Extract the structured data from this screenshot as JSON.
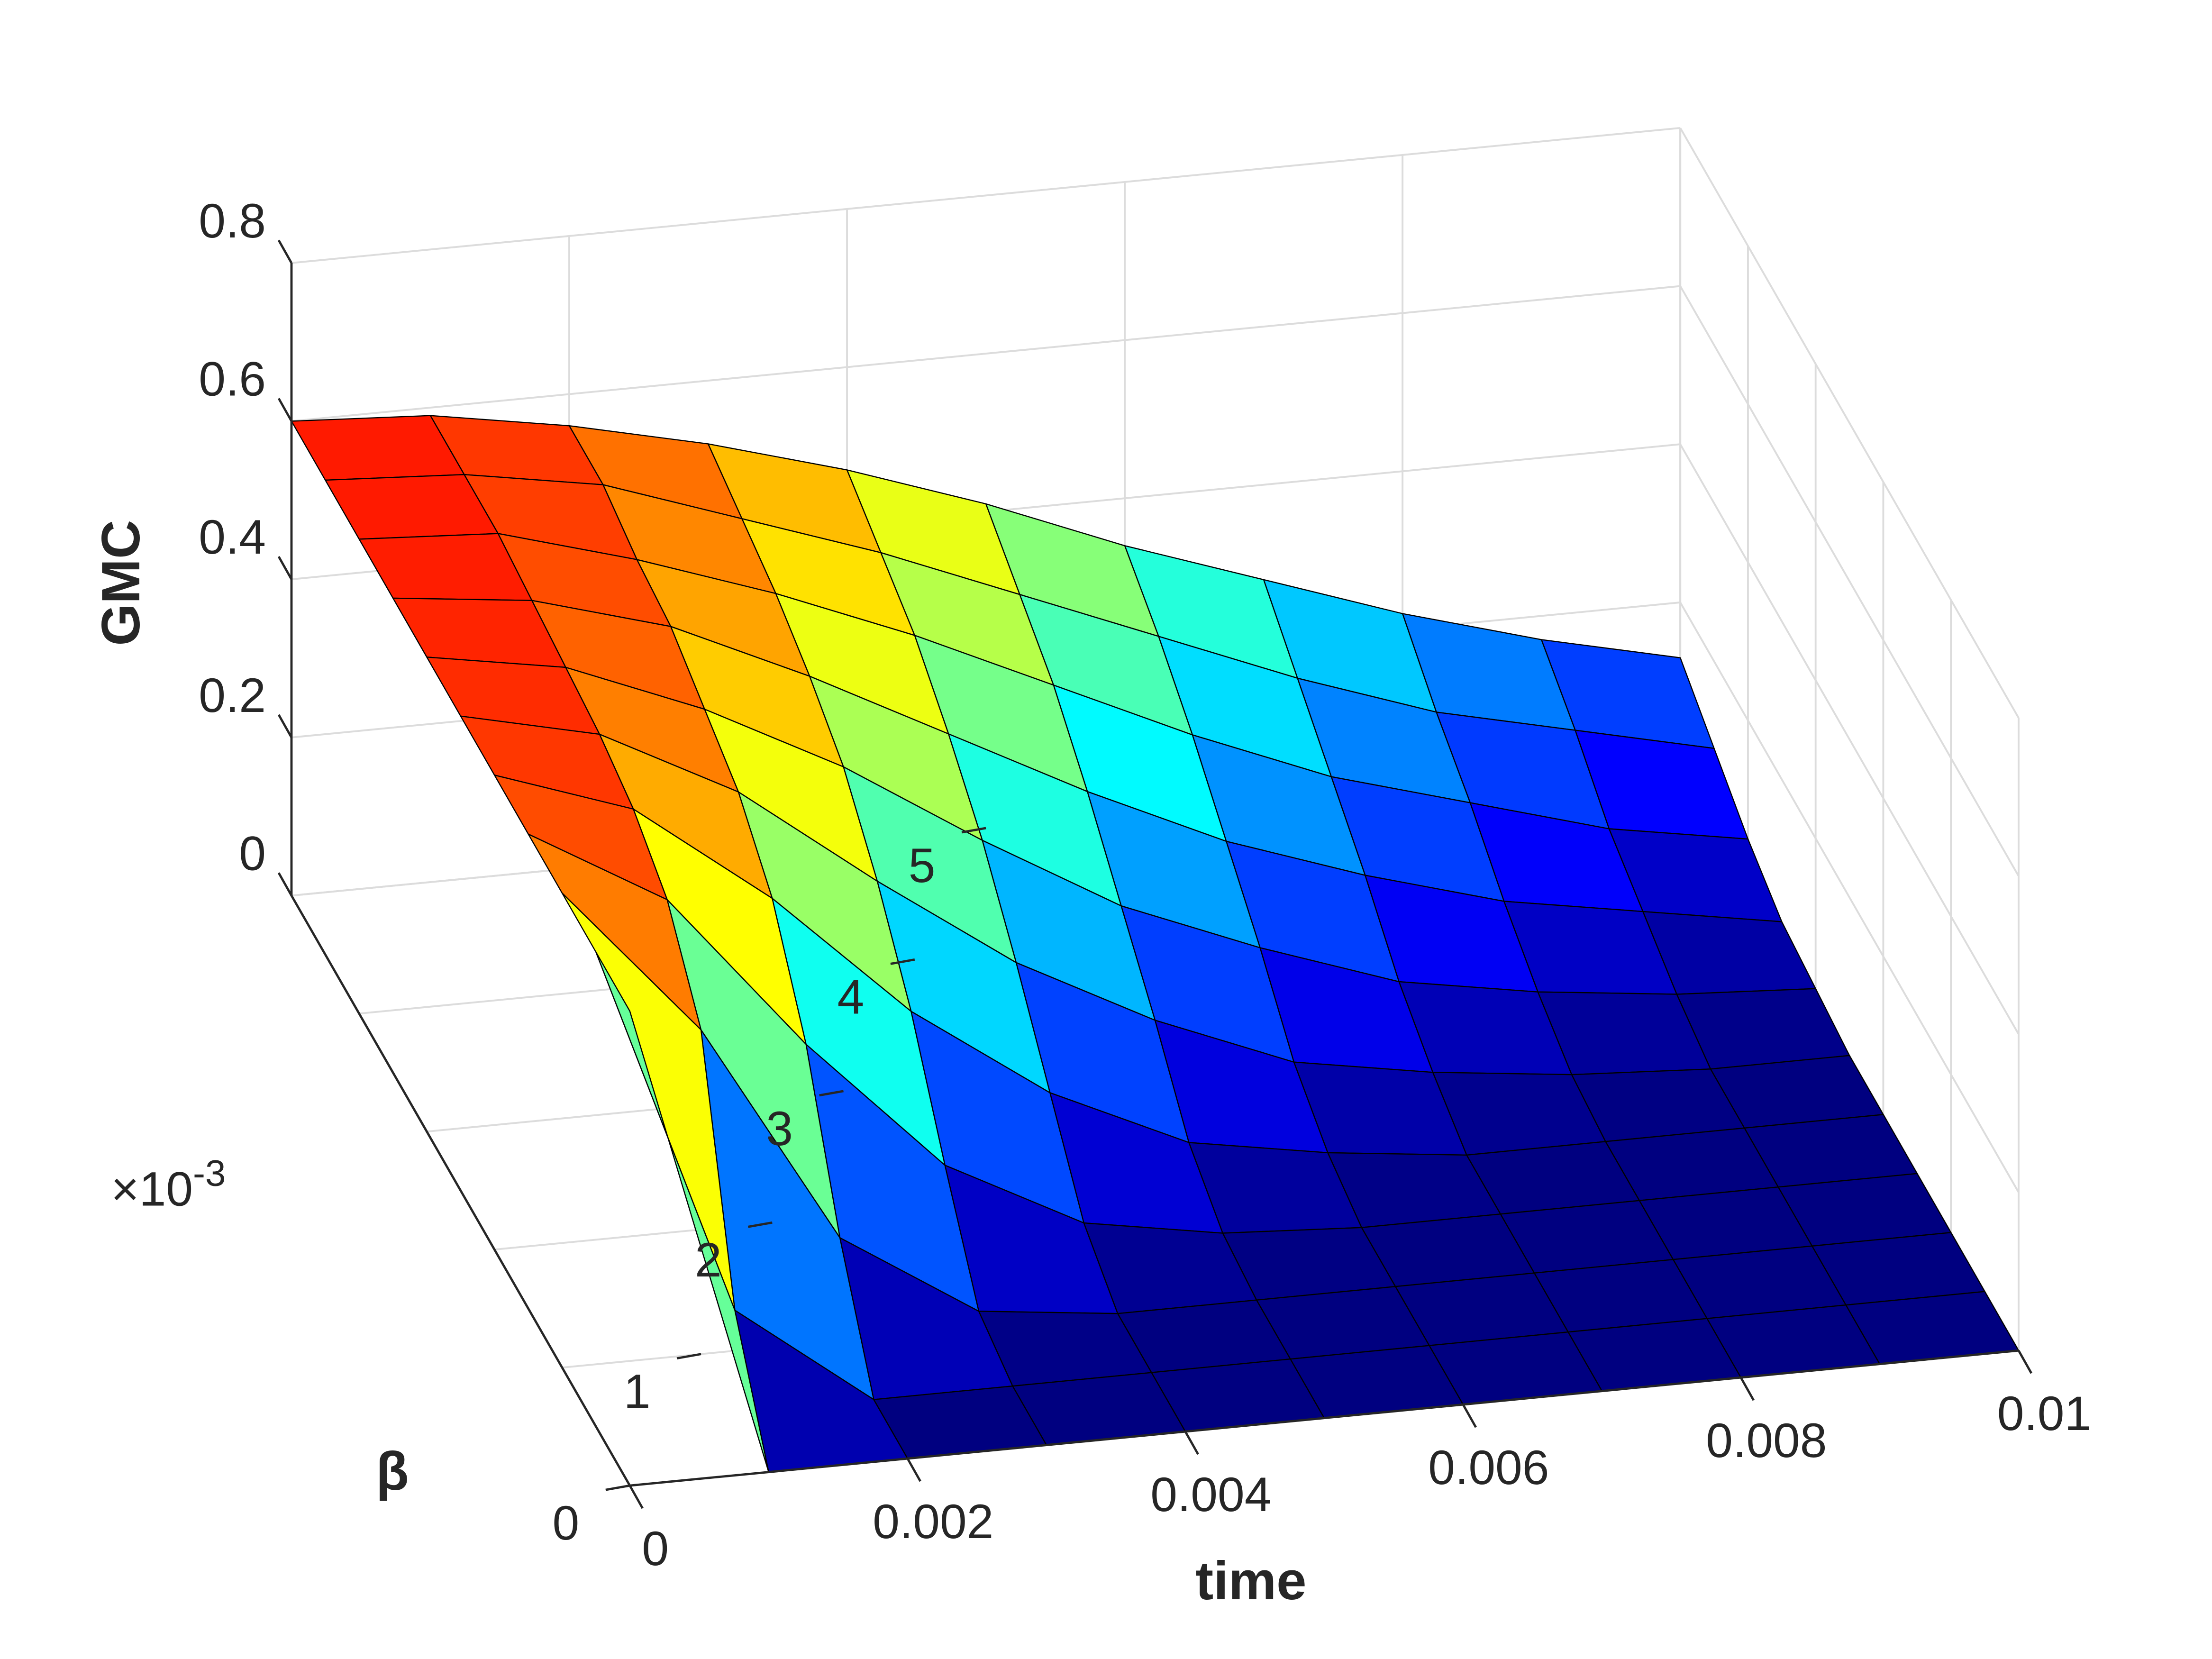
{
  "chart_data": {
    "type": "surface",
    "xlabel": "time",
    "ylabel": "β",
    "zlabel": "GMC",
    "y_exponent": {
      "base": "×10",
      "power": "-3"
    },
    "colormap": "jet",
    "clim": [
      0,
      0.7
    ],
    "x": [
      0,
      0.001,
      0.002,
      0.003,
      0.004,
      0.005,
      0.006,
      0.007,
      0.008,
      0.009,
      0.01
    ],
    "y": [
      0,
      0.0005,
      0.001,
      0.0015,
      0.002,
      0.0025,
      0.003,
      0.0035,
      0.004,
      0.0045,
      0.005
    ],
    "z": [
      [
        0.6,
        0,
        0,
        0,
        0,
        0,
        0,
        0,
        0,
        0,
        0
      ],
      [
        0.6,
        0.13,
        0,
        0,
        0,
        0,
        0,
        0,
        0,
        0,
        0
      ],
      [
        0.6,
        0.41,
        0.13,
        0.02,
        0,
        0,
        0,
        0,
        0,
        0,
        0
      ],
      [
        0.6,
        0.5,
        0.3,
        0.13,
        0.04,
        0.01,
        0,
        0,
        0,
        0,
        0
      ],
      [
        0.6,
        0.54,
        0.41,
        0.25,
        0.13,
        0.05,
        0.02,
        0,
        0,
        0,
        0
      ],
      [
        0.6,
        0.56,
        0.47,
        0.34,
        0.22,
        0.13,
        0.06,
        0.03,
        0.01,
        0,
        0
      ],
      [
        0.6,
        0.57,
        0.5,
        0.41,
        0.3,
        0.2,
        0.13,
        0.07,
        0.04,
        0.02,
        0.01
      ],
      [
        0.6,
        0.58,
        0.53,
        0.45,
        0.36,
        0.27,
        0.19,
        0.13,
        0.08,
        0.05,
        0.02
      ],
      [
        0.6,
        0.59,
        0.54,
        0.48,
        0.41,
        0.33,
        0.25,
        0.18,
        0.13,
        0.08,
        0.05
      ],
      [
        0.6,
        0.59,
        0.56,
        0.5,
        0.44,
        0.37,
        0.3,
        0.23,
        0.17,
        0.13,
        0.09
      ],
      [
        0.6,
        0.59,
        0.56,
        0.52,
        0.47,
        0.41,
        0.34,
        0.28,
        0.22,
        0.17,
        0.13
      ]
    ],
    "xlim": [
      0,
      0.01
    ],
    "ylim": [
      0,
      0.005
    ],
    "zlim": [
      0,
      0.8
    ],
    "xticks": [
      0,
      0.002,
      0.004,
      0.006,
      0.008,
      0.01
    ],
    "yticks": [
      {
        "value": 0,
        "label": "0"
      },
      {
        "value": 0.001,
        "label": "1"
      },
      {
        "value": 0.002,
        "label": "2"
      },
      {
        "value": 0.003,
        "label": "3"
      },
      {
        "value": 0.004,
        "label": "4"
      },
      {
        "value": 0.005,
        "label": "5"
      }
    ],
    "zticks": [
      0,
      0.2,
      0.4,
      0.6,
      0.8
    ],
    "grid": true
  }
}
